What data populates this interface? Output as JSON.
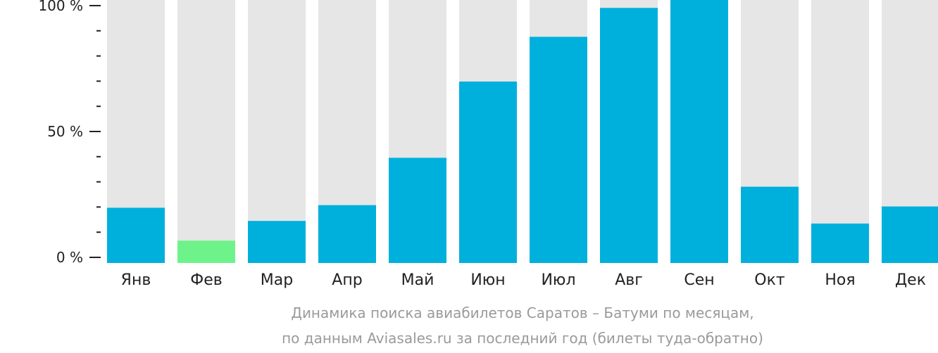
{
  "chart_data": {
    "type": "bar",
    "categories": [
      "Янв",
      "Фев",
      "Мар",
      "Апр",
      "Май",
      "Июн",
      "Июл",
      "Авг",
      "Сен",
      "Окт",
      "Ноя",
      "Дек"
    ],
    "values": [
      21,
      8.5,
      16,
      22,
      40,
      69,
      86,
      97,
      100,
      29,
      15,
      21.5
    ],
    "ylim": [
      0,
      100
    ],
    "yticks": [
      {
        "value": 0,
        "label": "0 %"
      },
      {
        "value": 50,
        "label": "50 %"
      },
      {
        "value": 100,
        "label": "100 %"
      }
    ],
    "minor_tick_step": 10,
    "highlight_index": 1,
    "colors": {
      "bar": "#00b0dc",
      "highlight": "#6ef38a",
      "track": "#e6e6e6",
      "axis": "#222222",
      "caption": "#9a9a9a"
    },
    "caption": [
      "Динамика поиска авиабилетов Саратов – Батуми по месяцам,",
      "по данным Aviasales.ru за последний год (билеты туда-обратно)"
    ]
  }
}
